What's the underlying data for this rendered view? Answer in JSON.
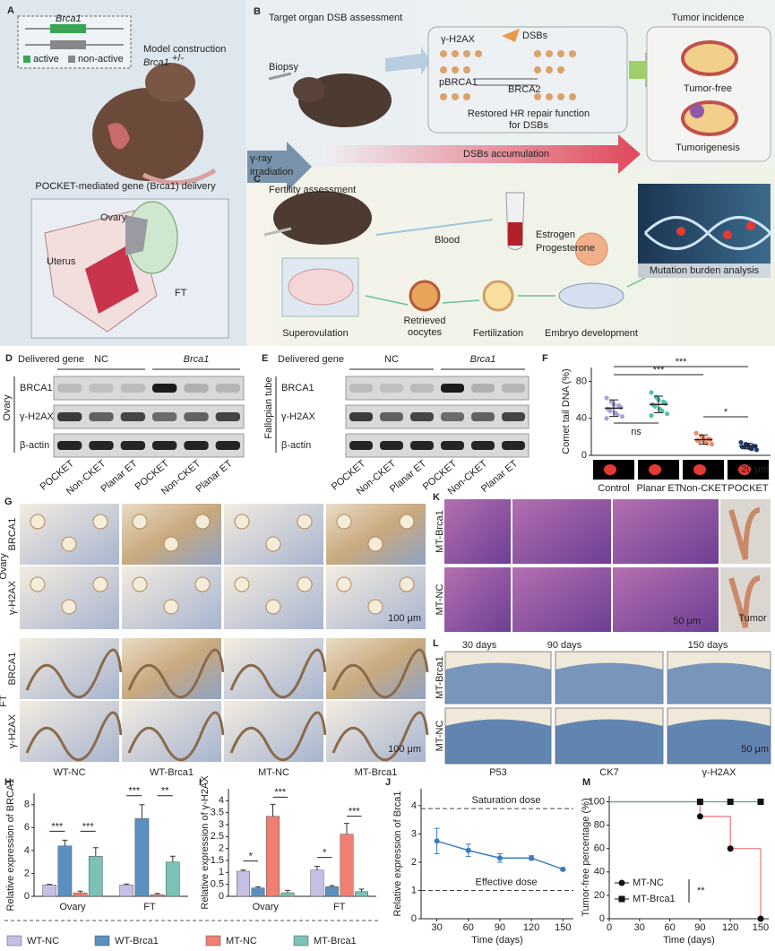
{
  "panel_labels": [
    "A",
    "B",
    "C",
    "D",
    "E",
    "F",
    "G",
    "H",
    "I",
    "J",
    "K",
    "L",
    "M"
  ],
  "panel_a": {
    "gene": "Brca1",
    "active": "active",
    "non_active": "non-active",
    "model_construction": "Model construction",
    "genotype": "Brca1",
    "genotype_sup": "+/-",
    "delivery": "POCKET-mediated gene (Brca1) delivery",
    "ovary": "Ovary",
    "uterus": "Uterus",
    "ft": "FT"
  },
  "irradiation": [
    "γ-ray",
    "irradiation"
  ],
  "panel_b": {
    "title": "Target organ DSB assessment",
    "biopsy": "Biopsy",
    "gamma_h2ax": "γ-H2AX",
    "dsbs": "DSBs",
    "pbrca1": "pBRCA1",
    "brca2": "BRCA2",
    "restored": [
      "Restored HR repair function",
      "for DSBs"
    ],
    "accumulation": "DSBs accumulation",
    "incidence": "Tumor incidence",
    "tumor_free": "Tumor-free",
    "tumorigenesis": "Tumorigenesis"
  },
  "panel_c": {
    "title": "Fertility assessment",
    "blood": "Blood",
    "hormones": [
      "Estrogen",
      "Progesterone"
    ],
    "superovulation": "Superovulation",
    "retrieved": [
      "Retrieved",
      "oocytes"
    ],
    "fertilization": "Fertilization",
    "embryo": "Embryo development",
    "mutation": "Mutation burden analysis"
  },
  "panel_d": {
    "delivered": "Delivered gene",
    "groups": [
      "NC",
      "Brca1"
    ],
    "tissue": "Ovary",
    "rows": [
      "BRCA1",
      "γ-H2AX",
      "β-actin"
    ],
    "lanes": [
      "POCKET",
      "Non-CKET",
      "Planar ET",
      "POCKET",
      "Non-CKET",
      "Planar ET"
    ]
  },
  "panel_e": {
    "delivered": "Delivered gene",
    "groups": [
      "NC",
      "Brca1"
    ],
    "tissue": "Fallopian tube",
    "rows": [
      "BRCA1",
      "γ-H2AX",
      "β-actin"
    ],
    "lanes": [
      "POCKET",
      "Non-CKET",
      "Planar ET",
      "POCKET",
      "Non-CKET",
      "Planar ET"
    ]
  },
  "panel_g": {
    "tissues": [
      "Ovary",
      "FT"
    ],
    "stains": [
      "BRCA1",
      "γ-H2AX"
    ],
    "columns": [
      "WT-NC",
      "WT-Brca1",
      "MT-NC",
      "MT-Brca1"
    ],
    "scale": "100 μm"
  },
  "panel_k": {
    "rows": [
      "MT-Brca1",
      "MT-NC"
    ],
    "tumor": "Tumor",
    "scale": "50 μm"
  },
  "panel_l": {
    "times": [
      "30 days",
      "90 days",
      "150 days"
    ],
    "rows": [
      "MT-Brca1",
      "MT-NC"
    ],
    "stains": [
      "P53",
      "CK7",
      "γ-H2AX"
    ],
    "scale": "50 μm"
  },
  "chart_data": [
    {
      "type": "dot",
      "y_label": "Comet tail DNA (%)",
      "categories": [
        "Control",
        "Planar ET",
        "Non-CKET",
        "POCKET"
      ],
      "colors": [
        "#a9a3d6",
        "#4fc2b0",
        "#f08a6a",
        "#1f3a7a"
      ],
      "points": [
        [
          62,
          58,
          55,
          54,
          52,
          50,
          48,
          46,
          44,
          42,
          40
        ],
        [
          68,
          63,
          60,
          58,
          56,
          55,
          53,
          50,
          48,
          45,
          43
        ],
        [
          24,
          21,
          19,
          18,
          17,
          16,
          15,
          14,
          13,
          12
        ],
        [
          14,
          12,
          11,
          10,
          10,
          9,
          9,
          8,
          7,
          6
        ]
      ],
      "values": [
        51,
        55,
        17,
        10
      ],
      "errors": [
        9,
        9,
        5,
        3
      ],
      "ylim": [
        0,
        95
      ],
      "yticks": [
        0,
        40,
        80
      ],
      "annotations": [
        "***",
        "***",
        "ns",
        "*"
      ],
      "scale_bar": "20 μm"
    },
    {
      "type": "bar",
      "y_label": "Relative expression of BRCA1",
      "categories": [
        "Ovary",
        "FT"
      ],
      "series": [
        {
          "name": "WT-NC",
          "color": "#c5bfe6",
          "values": [
            1.0,
            1.0
          ],
          "errors": [
            0.05,
            0.08
          ]
        },
        {
          "name": "WT-Brca1",
          "color": "#5b8fc0",
          "values": [
            4.4,
            6.8
          ],
          "errors": [
            0.5,
            1.2
          ]
        },
        {
          "name": "MT-NC",
          "color": "#ef7f6e",
          "values": [
            0.3,
            0.15
          ],
          "errors": [
            0.15,
            0.1
          ]
        },
        {
          "name": "MT-Brca1",
          "color": "#7ac2b5",
          "values": [
            3.5,
            3.0
          ],
          "errors": [
            0.75,
            0.5
          ]
        }
      ],
      "ylim": [
        0,
        9
      ],
      "yticks": [
        0,
        2,
        4,
        6,
        8
      ],
      "annotations": [
        "***",
        "***",
        "***",
        "**"
      ]
    },
    {
      "type": "bar",
      "y_label": "Relative expression of γ-H2AX",
      "categories": [
        "Ovary",
        "FT"
      ],
      "series": [
        {
          "color": "#c5bfe6",
          "values": [
            1.05,
            1.1
          ],
          "errors": [
            0.05,
            0.15
          ]
        },
        {
          "color": "#5b8fc0",
          "values": [
            0.35,
            0.4
          ],
          "errors": [
            0.05,
            0.05
          ]
        },
        {
          "color": "#ef7f6e",
          "values": [
            3.35,
            2.6
          ],
          "errors": [
            0.5,
            0.45
          ]
        },
        {
          "color": "#7ac2b5",
          "values": [
            0.15,
            0.2
          ],
          "errors": [
            0.1,
            0.1
          ]
        }
      ],
      "ylim": [
        0,
        4.5
      ],
      "yticks": [
        0,
        0.5,
        1,
        1.5,
        2,
        2.5,
        3,
        3.5,
        4
      ],
      "annotations": [
        "*",
        "***",
        "*",
        "***"
      ]
    },
    {
      "type": "line",
      "y_label": "Relative expression of Brca1",
      "x_label": "Time (days)",
      "x": [
        30,
        60,
        90,
        120,
        150
      ],
      "series": [
        {
          "color": "#3a7cc0",
          "values": [
            2.75,
            2.42,
            2.15,
            2.15,
            1.75
          ],
          "errors": [
            0.45,
            0.22,
            0.15,
            0.08,
            0.05
          ]
        }
      ],
      "xlim": [
        15,
        160
      ],
      "xticks": [
        30,
        60,
        90,
        120,
        150
      ],
      "ylim": [
        0,
        4.6
      ],
      "yticks": [
        0,
        1,
        2,
        3,
        4
      ],
      "reference_lines": [
        {
          "label": "Saturation dose",
          "value": 3.9
        },
        {
          "label": "Effective dose",
          "value": 1.0
        }
      ]
    },
    {
      "type": "step",
      "y_label": "Tumor-free percentage (%)",
      "x_label": "Time (days)",
      "series": [
        {
          "name": "MT-NC",
          "color": "#f08080",
          "marker": "circle",
          "x": [
            0,
            90,
            120,
            150
          ],
          "values": [
            100,
            87.5,
            60,
            0
          ]
        },
        {
          "name": "MT-Brca1",
          "color": "#4aa99a",
          "marker": "square",
          "x": [
            0,
            90,
            120,
            150
          ],
          "values": [
            100,
            100,
            100,
            100
          ]
        }
      ],
      "xlim": [
        0,
        158
      ],
      "xticks": [
        0,
        30,
        60,
        90,
        120,
        150
      ],
      "ylim": [
        0,
        105
      ],
      "yticks": [
        0,
        20,
        40,
        60,
        80,
        100
      ],
      "annotation": "**",
      "legend": "lower left"
    }
  ]
}
